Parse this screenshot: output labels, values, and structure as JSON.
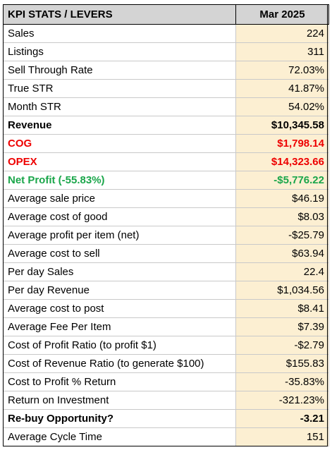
{
  "header": {
    "label": "KPI STATS / LEVERS",
    "period": "Mar 2025"
  },
  "rows": [
    {
      "label": "Sales",
      "value": "224",
      "style": ""
    },
    {
      "label": "Listings",
      "value": "311",
      "style": ""
    },
    {
      "label": "Sell Through Rate",
      "value": "72.03%",
      "style": ""
    },
    {
      "label": "True STR",
      "value": "41.87%",
      "style": ""
    },
    {
      "label": "Month STR",
      "value": "54.02%",
      "style": ""
    },
    {
      "label": "Revenue",
      "value": "$10,345.58",
      "style": "bold"
    },
    {
      "label": "COG",
      "value": "$1,798.14",
      "style": "red"
    },
    {
      "label": "OPEX",
      "value": "$14,323.66",
      "style": "red"
    },
    {
      "label": "Net Profit (-55.83%)",
      "value": "-$5,776.22",
      "style": "green"
    },
    {
      "label": "Average sale price",
      "value": "$46.19",
      "style": ""
    },
    {
      "label": "Average cost of good",
      "value": "$8.03",
      "style": ""
    },
    {
      "label": "Average profit per item (net)",
      "value": "-$25.79",
      "style": ""
    },
    {
      "label": "Average cost to sell",
      "value": "$63.94",
      "style": ""
    },
    {
      "label": "Per day Sales",
      "value": "22.4",
      "style": ""
    },
    {
      "label": "Per day Revenue",
      "value": "$1,034.56",
      "style": ""
    },
    {
      "label": "Average cost to post",
      "value": "$8.41",
      "style": ""
    },
    {
      "label": "Average Fee Per Item",
      "value": "$7.39",
      "style": ""
    },
    {
      "label": "Cost of Profit Ratio (to profit $1)",
      "value": "-$2.79",
      "style": ""
    },
    {
      "label": "Cost of Revenue Ratio (to generate $100)",
      "value": "$155.83",
      "style": ""
    },
    {
      "label": "Cost to Profit % Return",
      "value": "-35.83%",
      "style": ""
    },
    {
      "label": "Return on Investment",
      "value": "-321.23%",
      "style": ""
    },
    {
      "label": "Re-buy Opportunity?",
      "value": "-3.21",
      "style": "bold"
    },
    {
      "label": "Average Cycle Time",
      "value": "151",
      "style": ""
    }
  ],
  "colors": {
    "header_bg": "#d4d4d4",
    "value_bg": "#fcefd2",
    "red": "#ee0000",
    "green": "#1aa64a"
  }
}
